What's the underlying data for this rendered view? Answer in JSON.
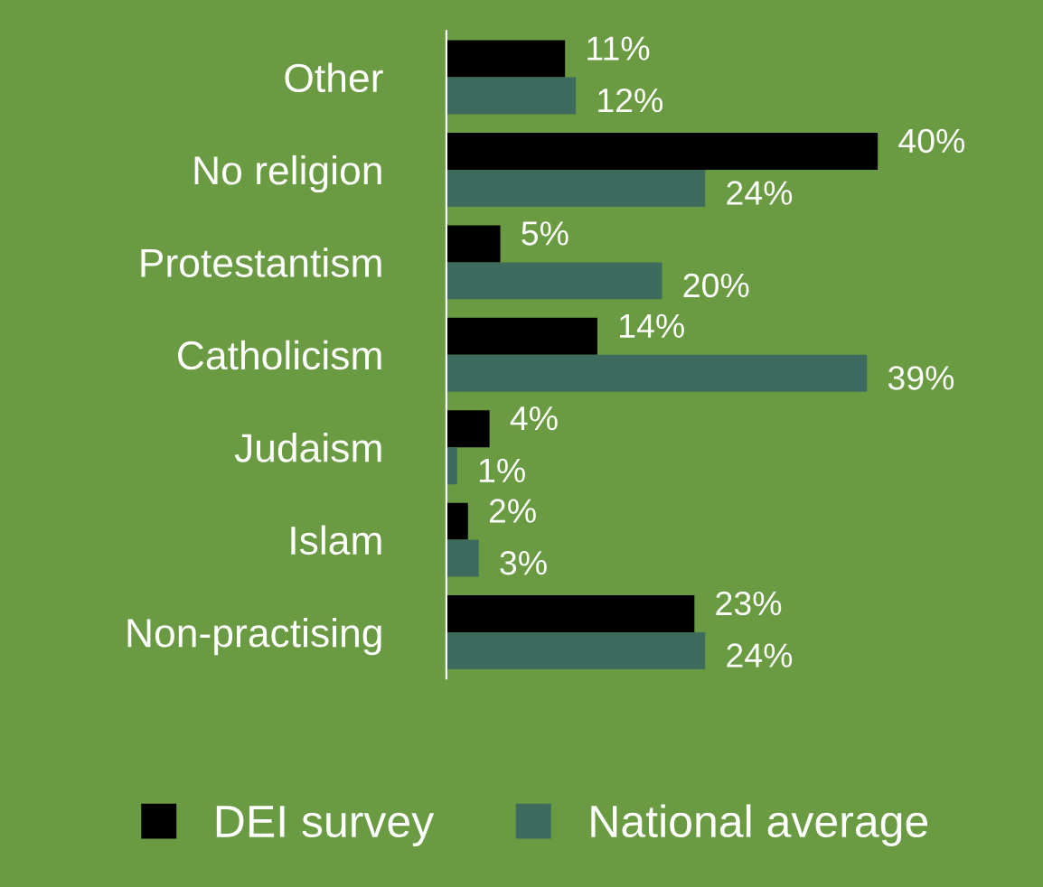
{
  "chart_data": {
    "type": "bar",
    "orientation": "horizontal",
    "categories": [
      "Other",
      "No religion",
      "Protestantism",
      "Catholicism",
      "Judaism",
      "Islam",
      "Non-practising"
    ],
    "series": [
      {
        "name": "DEI survey",
        "color": "#000000",
        "values": [
          11,
          40,
          5,
          14,
          4,
          2,
          23
        ],
        "value_labels": [
          "11%",
          "40%",
          "5%",
          "14%",
          "4%",
          "2%",
          "23%"
        ]
      },
      {
        "name": "National average",
        "color": "#3d6b5e",
        "values": [
          12,
          24,
          20,
          39,
          1,
          3,
          24
        ],
        "value_labels": [
          "12%",
          "24%",
          "20%",
          "39%",
          "1%",
          "3%",
          "24%"
        ]
      }
    ],
    "legend": "bottom",
    "grid": false
  }
}
